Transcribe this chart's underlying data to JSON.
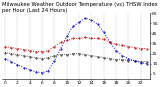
{
  "title": "Milwaukee Weather Outdoor Temperature (vs) THSW Index per Hour (Last 24 Hours)",
  "hours": [
    0,
    1,
    2,
    3,
    4,
    5,
    6,
    7,
    8,
    9,
    10,
    11,
    12,
    13,
    14,
    15,
    16,
    17,
    18,
    19,
    20,
    21,
    22,
    23
  ],
  "temp": [
    32,
    31,
    30,
    29,
    28,
    27,
    27,
    28,
    32,
    36,
    38,
    40,
    40,
    41,
    40,
    40,
    39,
    36,
    34,
    33,
    32,
    31,
    30,
    30
  ],
  "thsw": [
    20,
    17,
    14,
    11,
    9,
    7,
    6,
    8,
    18,
    30,
    42,
    52,
    56,
    60,
    58,
    54,
    46,
    36,
    28,
    23,
    20,
    18,
    16,
    15
  ],
  "dewpoint": [
    26,
    25,
    24,
    23,
    22,
    21,
    20,
    21,
    23,
    24,
    24,
    25,
    25,
    24,
    23,
    22,
    21,
    20,
    19,
    19,
    18,
    18,
    17,
    17
  ],
  "temp_color": "#cc0000",
  "thsw_color": "#0000cc",
  "dew_color": "#000000",
  "bg_color": "#ffffff",
  "grid_color": "#999999",
  "ylim": [
    0,
    65
  ],
  "ytick_vals": [
    5,
    15,
    25,
    35,
    45,
    55,
    65
  ],
  "ytick_labels": [
    "5",
    "15",
    "25",
    "35",
    "45",
    "55",
    "65"
  ],
  "xtick_vals": [
    0,
    2,
    4,
    6,
    8,
    10,
    12,
    14,
    16,
    18,
    20,
    22
  ],
  "title_fontsize": 3.8,
  "tick_fontsize": 3.2,
  "linewidth": 0.7,
  "markersize": 1.0
}
